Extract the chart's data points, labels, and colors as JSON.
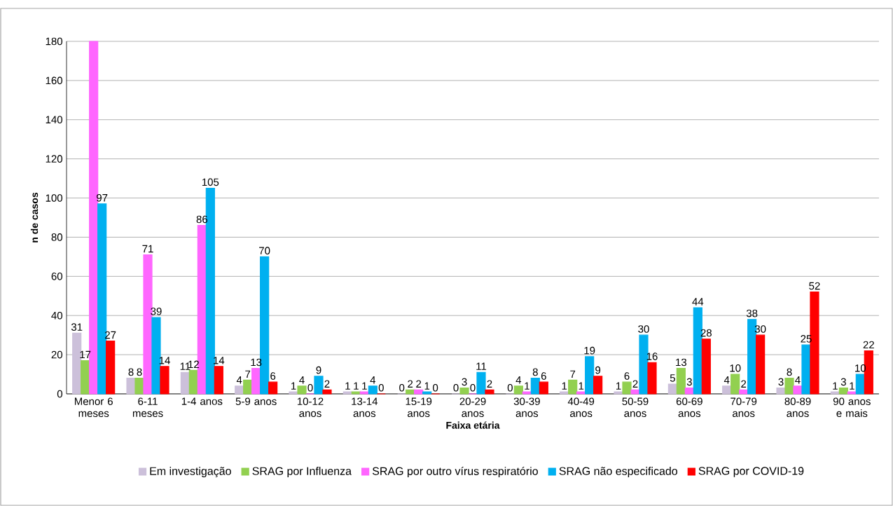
{
  "chart_data": {
    "type": "bar",
    "xlabel": "Faixa etária",
    "ylabel": "n de casos",
    "categories": [
      "Menor 6 meses",
      "6-11 meses",
      "1-4 anos",
      "5-9 anos",
      "10-12 anos",
      "13-14 anos",
      "15-19 anos",
      "20-29 anos",
      "30-39 anos",
      "40-49 anos",
      "50-59 anos",
      "60-69 anos",
      "70-79 anos",
      "80-89 anos",
      "90 anos e mais"
    ],
    "series": [
      {
        "name": "Em investigação",
        "color": "#ccc0da",
        "values": [
          31,
          8,
          11,
          4,
          1,
          1,
          0,
          0,
          0,
          1,
          1,
          5,
          4,
          3,
          1
        ],
        "value_labels": [
          "31",
          "8",
          "11",
          "4",
          "1",
          "1",
          "0",
          "0",
          "0",
          "1",
          "1",
          "5",
          "4",
          "3",
          "1"
        ]
      },
      {
        "name": "SRAG por Influenza",
        "color": "#92d050",
        "values": [
          17,
          8,
          12,
          7,
          4,
          1,
          2,
          3,
          4,
          7,
          6,
          13,
          10,
          8,
          3
        ],
        "value_labels": [
          "17",
          "8",
          "12",
          "7",
          "4",
          "1",
          "2",
          "3",
          "4",
          "7",
          "6",
          "13",
          "10",
          "8",
          "3"
        ]
      },
      {
        "name": "SRAG por outro vírus respiratório",
        "color": "#ff66ff",
        "values": [
          180,
          71,
          86,
          13,
          0,
          1,
          2,
          0,
          1,
          1,
          2,
          3,
          2,
          4,
          1
        ],
        "value_labels": [
          null,
          "71",
          "86",
          "13",
          "0",
          "1",
          "2",
          "0",
          "1",
          "1",
          "2",
          "3",
          "2",
          "4",
          "1"
        ]
      },
      {
        "name": "SRAG não especificado",
        "color": "#00b0f0",
        "values": [
          97,
          39,
          105,
          70,
          9,
          4,
          1,
          11,
          8,
          19,
          30,
          44,
          38,
          25,
          10
        ],
        "value_labels": [
          "97",
          "39",
          "105",
          "70",
          "9",
          "4",
          "1",
          "11",
          "8",
          "19",
          "30",
          "44",
          "38",
          "25",
          "10"
        ]
      },
      {
        "name": "SRAG por COVID-19",
        "color": "#ff0000",
        "values": [
          27,
          14,
          14,
          6,
          2,
          0,
          0,
          2,
          6,
          9,
          16,
          28,
          30,
          52,
          22
        ],
        "value_labels": [
          "27",
          "14",
          "14",
          "6",
          "2",
          "0",
          "0",
          "2",
          "6",
          "9",
          "16",
          "28",
          "30",
          "52",
          "22"
        ]
      }
    ],
    "ylim": [
      0,
      180
    ],
    "yticks": [
      0,
      20,
      40,
      60,
      80,
      100,
      120,
      140,
      160,
      180
    ],
    "grid": "y",
    "legend": "bottom"
  }
}
